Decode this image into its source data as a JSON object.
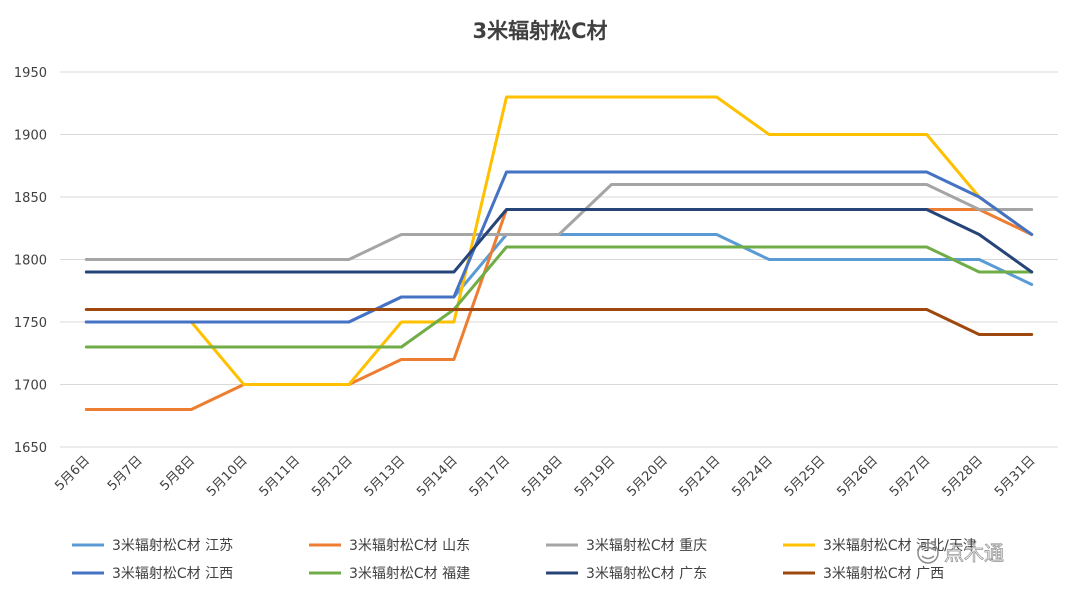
{
  "chart_data": {
    "type": "line",
    "title": "3米辐射松C材",
    "xlabel": "",
    "ylabel": "",
    "ylim": [
      1650,
      1950
    ],
    "yticks": [
      1650,
      1700,
      1750,
      1800,
      1850,
      1900,
      1950
    ],
    "grid": true,
    "legend_position": "bottom",
    "categories": [
      "5月6日",
      "5月7日",
      "5月8日",
      "5月10日",
      "5月11日",
      "5月12日",
      "5月13日",
      "5月14日",
      "5月17日",
      "5月18日",
      "5月19日",
      "5月20日",
      "5月21日",
      "5月24日",
      "5月25日",
      "5月26日",
      "5月27日",
      "5月28日",
      "5月31日"
    ],
    "series": [
      {
        "name": "3米辐射松C材 江苏",
        "color": "#5b9bd5",
        "values": [
          1750,
          1750,
          1750,
          1750,
          1750,
          1750,
          1770,
          1770,
          1820,
          1820,
          1820,
          1820,
          1820,
          1800,
          1800,
          1800,
          1800,
          1800,
          1780
        ]
      },
      {
        "name": "3米辐射松C材 山东",
        "color": "#ed7d31",
        "values": [
          1680,
          1680,
          1680,
          1700,
          1700,
          1700,
          1720,
          1720,
          1840,
          1840,
          1840,
          1840,
          1840,
          1840,
          1840,
          1840,
          1840,
          1840,
          1820
        ]
      },
      {
        "name": "3米辐射松C材 重庆",
        "color": "#a5a5a5",
        "values": [
          1800,
          1800,
          1800,
          1800,
          1800,
          1800,
          1820,
          1820,
          1820,
          1820,
          1860,
          1860,
          1860,
          1860,
          1860,
          1860,
          1860,
          1840,
          1840
        ]
      },
      {
        "name": "3米辐射松C材 河北/天津",
        "color": "#ffc000",
        "values": [
          1750,
          1750,
          1750,
          1700,
          1700,
          1700,
          1750,
          1750,
          1930,
          1930,
          1930,
          1930,
          1930,
          1900,
          1900,
          1900,
          1900,
          1850,
          1820
        ]
      },
      {
        "name": "3米辐射松C材 江西",
        "color": "#4472c4",
        "values": [
          1750,
          1750,
          1750,
          1750,
          1750,
          1750,
          1770,
          1770,
          1870,
          1870,
          1870,
          1870,
          1870,
          1870,
          1870,
          1870,
          1870,
          1850,
          1820
        ]
      },
      {
        "name": "3米辐射松C材 福建",
        "color": "#70ad47",
        "values": [
          1730,
          1730,
          1730,
          1730,
          1730,
          1730,
          1730,
          1760,
          1810,
          1810,
          1810,
          1810,
          1810,
          1810,
          1810,
          1810,
          1810,
          1790,
          1790
        ]
      },
      {
        "name": "3米辐射松C材 广东",
        "color": "#264478",
        "values": [
          1790,
          1790,
          1790,
          1790,
          1790,
          1790,
          1790,
          1790,
          1840,
          1840,
          1840,
          1840,
          1840,
          1840,
          1840,
          1840,
          1840,
          1820,
          1790
        ]
      },
      {
        "name": "3米辐射松C材 广西",
        "color": "#9e480e",
        "values": [
          1760,
          1760,
          1760,
          1760,
          1760,
          1760,
          1760,
          1760,
          1760,
          1760,
          1760,
          1760,
          1760,
          1760,
          1760,
          1760,
          1760,
          1740,
          1740
        ]
      }
    ]
  },
  "watermark": "点木通"
}
